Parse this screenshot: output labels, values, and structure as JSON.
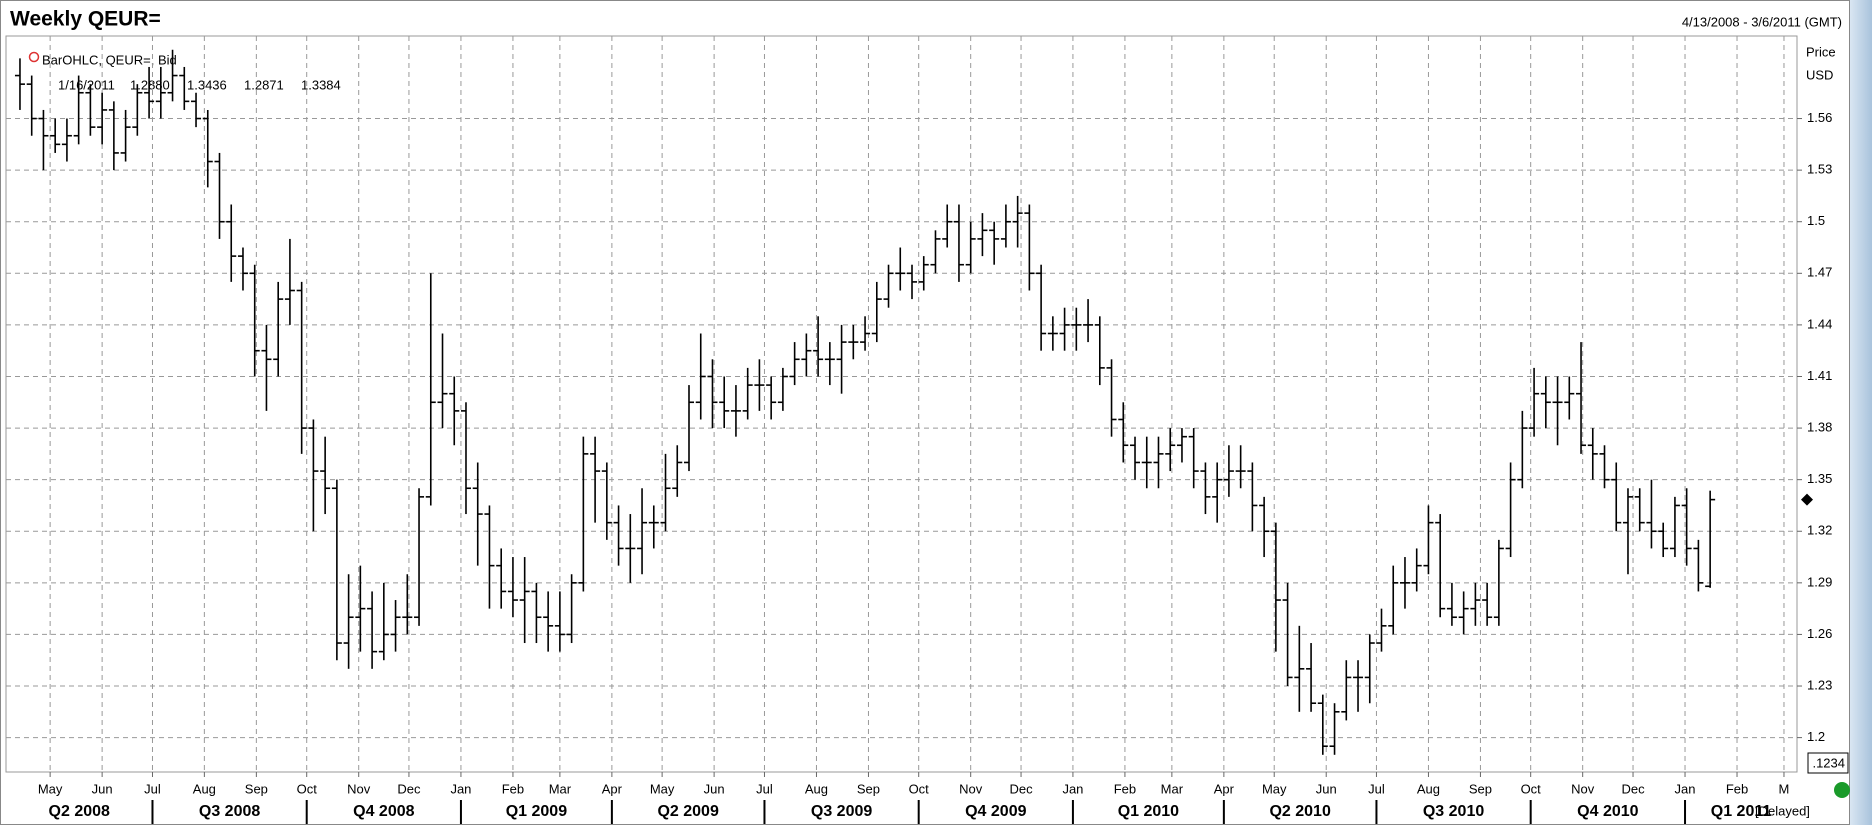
{
  "chart_data": {
    "type": "ohlc",
    "title": "Weekly QEUR=",
    "subtitle": "4/13/2008 - 3/6/2011 (GMT)",
    "y_axis_label": "Price",
    "y_axis_unit": "USD",
    "legend_name": "BarOHLC, QEUR=, Bid",
    "legend_date": "1/16/2011",
    "last_value_labels": [
      "1.2880",
      "1.3436",
      "1.2871",
      "1.3384"
    ],
    "cursor_label": ".1234",
    "status": "[Delayed]",
    "color": "#000000",
    "grid": true,
    "open": [
      1.585,
      1.58,
      1.56,
      1.55,
      1.545,
      1.55,
      1.575,
      1.555,
      1.565,
      1.54,
      1.555,
      1.575,
      1.57,
      1.575,
      1.585,
      1.57,
      1.56,
      1.535,
      1.5,
      1.48,
      1.47,
      1.425,
      1.42,
      1.455,
      1.46,
      1.38,
      1.355,
      1.345,
      1.255,
      1.27,
      1.275,
      1.25,
      1.26,
      1.27,
      1.27,
      1.34,
      1.395,
      1.4,
      1.39,
      1.345,
      1.33,
      1.3,
      1.285,
      1.28,
      1.285,
      1.27,
      1.265,
      1.26,
      1.29,
      1.365,
      1.355,
      1.325,
      1.31,
      1.31,
      1.325,
      1.325,
      1.345,
      1.36,
      1.395,
      1.41,
      1.395,
      1.39,
      1.39,
      1.405,
      1.405,
      1.395,
      1.41,
      1.42,
      1.425,
      1.42,
      1.42,
      1.43,
      1.43,
      1.435,
      1.455,
      1.47,
      1.47,
      1.465,
      1.475,
      1.49,
      1.5,
      1.475,
      1.49,
      1.495,
      1.49,
      1.5,
      1.505,
      1.47,
      1.435,
      1.435,
      1.44,
      1.44,
      1.44,
      1.415,
      1.385,
      1.37,
      1.36,
      1.36,
      1.365,
      1.37,
      1.375,
      1.355,
      1.34,
      1.35,
      1.355,
      1.355,
      1.335,
      1.32,
      1.28,
      1.235,
      1.24,
      1.22,
      1.195,
      1.215,
      1.235,
      1.235,
      1.255,
      1.265,
      1.29,
      1.29,
      1.3,
      1.325,
      1.275,
      1.27,
      1.275,
      1.28,
      1.27,
      1.31,
      1.35,
      1.38,
      1.4,
      1.395,
      1.395,
      1.4,
      1.37,
      1.365,
      1.35,
      1.325,
      1.34,
      1.325,
      1.32,
      1.31,
      1.335,
      1.31,
      1.288
    ],
    "high": [
      1.595,
      1.585,
      1.565,
      1.56,
      1.56,
      1.585,
      1.58,
      1.575,
      1.57,
      1.565,
      1.58,
      1.59,
      1.59,
      1.6,
      1.59,
      1.575,
      1.565,
      1.54,
      1.51,
      1.485,
      1.475,
      1.44,
      1.465,
      1.49,
      1.465,
      1.385,
      1.375,
      1.35,
      1.295,
      1.3,
      1.285,
      1.29,
      1.28,
      1.295,
      1.345,
      1.47,
      1.435,
      1.41,
      1.395,
      1.36,
      1.335,
      1.31,
      1.305,
      1.305,
      1.29,
      1.285,
      1.285,
      1.295,
      1.375,
      1.375,
      1.36,
      1.335,
      1.33,
      1.345,
      1.335,
      1.365,
      1.37,
      1.405,
      1.435,
      1.42,
      1.41,
      1.405,
      1.415,
      1.42,
      1.41,
      1.415,
      1.43,
      1.435,
      1.445,
      1.43,
      1.44,
      1.44,
      1.445,
      1.465,
      1.475,
      1.485,
      1.475,
      1.48,
      1.495,
      1.51,
      1.51,
      1.5,
      1.505,
      1.5,
      1.51,
      1.515,
      1.51,
      1.475,
      1.445,
      1.45,
      1.45,
      1.455,
      1.445,
      1.42,
      1.395,
      1.375,
      1.375,
      1.375,
      1.38,
      1.38,
      1.38,
      1.36,
      1.36,
      1.37,
      1.37,
      1.36,
      1.34,
      1.325,
      1.29,
      1.265,
      1.255,
      1.225,
      1.22,
      1.245,
      1.245,
      1.26,
      1.275,
      1.3,
      1.305,
      1.31,
      1.335,
      1.33,
      1.29,
      1.285,
      1.29,
      1.29,
      1.315,
      1.36,
      1.39,
      1.415,
      1.41,
      1.41,
      1.41,
      1.43,
      1.38,
      1.37,
      1.36,
      1.345,
      1.345,
      1.35,
      1.325,
      1.34,
      1.345,
      1.315,
      1.3436
    ],
    "low": [
      1.565,
      1.55,
      1.53,
      1.54,
      1.535,
      1.545,
      1.55,
      1.545,
      1.53,
      1.535,
      1.55,
      1.56,
      1.56,
      1.57,
      1.565,
      1.555,
      1.52,
      1.49,
      1.465,
      1.46,
      1.41,
      1.39,
      1.41,
      1.44,
      1.365,
      1.32,
      1.33,
      1.245,
      1.24,
      1.25,
      1.24,
      1.245,
      1.25,
      1.26,
      1.265,
      1.335,
      1.38,
      1.37,
      1.33,
      1.3,
      1.275,
      1.275,
      1.27,
      1.255,
      1.255,
      1.25,
      1.25,
      1.255,
      1.285,
      1.325,
      1.315,
      1.3,
      1.29,
      1.295,
      1.31,
      1.32,
      1.34,
      1.355,
      1.385,
      1.38,
      1.38,
      1.375,
      1.385,
      1.39,
      1.385,
      1.39,
      1.405,
      1.41,
      1.41,
      1.405,
      1.4,
      1.42,
      1.425,
      1.43,
      1.45,
      1.46,
      1.455,
      1.46,
      1.47,
      1.485,
      1.465,
      1.47,
      1.48,
      1.475,
      1.485,
      1.485,
      1.46,
      1.425,
      1.425,
      1.425,
      1.425,
      1.43,
      1.405,
      1.375,
      1.36,
      1.35,
      1.345,
      1.345,
      1.355,
      1.36,
      1.345,
      1.33,
      1.325,
      1.34,
      1.345,
      1.32,
      1.305,
      1.25,
      1.23,
      1.215,
      1.215,
      1.19,
      1.19,
      1.21,
      1.215,
      1.22,
      1.25,
      1.26,
      1.275,
      1.285,
      1.295,
      1.27,
      1.265,
      1.26,
      1.265,
      1.265,
      1.265,
      1.305,
      1.345,
      1.375,
      1.38,
      1.37,
      1.385,
      1.365,
      1.35,
      1.345,
      1.32,
      1.295,
      1.32,
      1.31,
      1.305,
      1.305,
      1.3,
      1.285,
      1.2871
    ],
    "close": [
      1.58,
      1.56,
      1.55,
      1.545,
      1.55,
      1.575,
      1.555,
      1.565,
      1.54,
      1.555,
      1.575,
      1.57,
      1.575,
      1.585,
      1.57,
      1.56,
      1.535,
      1.5,
      1.48,
      1.47,
      1.425,
      1.42,
      1.455,
      1.46,
      1.38,
      1.355,
      1.345,
      1.255,
      1.27,
      1.275,
      1.25,
      1.26,
      1.27,
      1.27,
      1.34,
      1.395,
      1.4,
      1.39,
      1.345,
      1.33,
      1.3,
      1.285,
      1.28,
      1.285,
      1.27,
      1.265,
      1.26,
      1.29,
      1.365,
      1.355,
      1.325,
      1.31,
      1.31,
      1.325,
      1.325,
      1.345,
      1.36,
      1.395,
      1.41,
      1.395,
      1.39,
      1.39,
      1.405,
      1.405,
      1.395,
      1.41,
      1.42,
      1.425,
      1.42,
      1.42,
      1.43,
      1.43,
      1.435,
      1.455,
      1.47,
      1.47,
      1.465,
      1.475,
      1.49,
      1.5,
      1.475,
      1.49,
      1.495,
      1.49,
      1.5,
      1.505,
      1.47,
      1.435,
      1.435,
      1.44,
      1.44,
      1.44,
      1.415,
      1.385,
      1.37,
      1.36,
      1.36,
      1.365,
      1.37,
      1.375,
      1.355,
      1.34,
      1.35,
      1.355,
      1.355,
      1.335,
      1.32,
      1.28,
      1.235,
      1.24,
      1.22,
      1.195,
      1.215,
      1.235,
      1.235,
      1.255,
      1.265,
      1.29,
      1.29,
      1.3,
      1.325,
      1.275,
      1.27,
      1.275,
      1.28,
      1.27,
      1.31,
      1.35,
      1.38,
      1.4,
      1.395,
      1.395,
      1.4,
      1.37,
      1.365,
      1.35,
      1.325,
      1.34,
      1.325,
      1.32,
      1.31,
      1.335,
      1.31,
      1.29,
      1.3384
    ],
    "xlim": [
      -1.19,
      151.4
    ],
    "ylim": [
      1.18,
      1.608
    ],
    "yticks": [
      1.2,
      1.23,
      1.26,
      1.29,
      1.32,
      1.35,
      1.38,
      1.41,
      1.44,
      1.47,
      1.5,
      1.53,
      1.56
    ],
    "xticks": [
      {
        "value": 2.57,
        "label": "May"
      },
      {
        "value": 7.0,
        "label": "Jun"
      },
      {
        "value": 11.29,
        "label": "Jul"
      },
      {
        "value": 15.71,
        "label": "Aug"
      },
      {
        "value": 20.14,
        "label": "Sep"
      },
      {
        "value": 24.43,
        "label": "Oct"
      },
      {
        "value": 28.86,
        "label": "Nov"
      },
      {
        "value": 33.14,
        "label": "Dec"
      },
      {
        "value": 37.57,
        "label": "Jan"
      },
      {
        "value": 42.0,
        "label": "Feb"
      },
      {
        "value": 46.0,
        "label": "Mar"
      },
      {
        "value": 50.43,
        "label": "Apr"
      },
      {
        "value": 54.71,
        "label": "May"
      },
      {
        "value": 59.14,
        "label": "Jun"
      },
      {
        "value": 63.43,
        "label": "Jul"
      },
      {
        "value": 67.86,
        "label": "Aug"
      },
      {
        "value": 72.29,
        "label": "Sep"
      },
      {
        "value": 76.57,
        "label": "Oct"
      },
      {
        "value": 81.0,
        "label": "Nov"
      },
      {
        "value": 85.29,
        "label": "Dec"
      },
      {
        "value": 89.71,
        "label": "Jan"
      },
      {
        "value": 94.14,
        "label": "Feb"
      },
      {
        "value": 98.14,
        "label": "Mar"
      },
      {
        "value": 102.57,
        "label": "Apr"
      },
      {
        "value": 106.86,
        "label": "May"
      },
      {
        "value": 111.29,
        "label": "Jun"
      },
      {
        "value": 115.57,
        "label": "Jul"
      },
      {
        "value": 120.0,
        "label": "Aug"
      },
      {
        "value": 124.43,
        "label": "Sep"
      },
      {
        "value": 128.71,
        "label": "Oct"
      },
      {
        "value": 133.14,
        "label": "Nov"
      },
      {
        "value": 137.43,
        "label": "Dec"
      },
      {
        "value": 141.86,
        "label": "Jan"
      },
      {
        "value": 146.29,
        "label": "Feb"
      },
      {
        "value": 150.29,
        "label": "M"
      }
    ],
    "quarters": [
      {
        "value": -1.71,
        "label": "Q2 2008"
      },
      {
        "value": 11.29,
        "label": "Q3 2008"
      },
      {
        "value": 24.43,
        "label": "Q4 2008"
      },
      {
        "value": 37.57,
        "label": "Q1 2009"
      },
      {
        "value": 50.43,
        "label": "Q2 2009"
      },
      {
        "value": 63.43,
        "label": "Q3 2009"
      },
      {
        "value": 76.57,
        "label": "Q4 2009"
      },
      {
        "value": 89.71,
        "label": "Q1 2010"
      },
      {
        "value": 102.57,
        "label": "Q2 2010"
      },
      {
        "value": 115.57,
        "label": "Q3 2010"
      },
      {
        "value": 128.71,
        "label": "Q4 2010"
      },
      {
        "value": 141.86,
        "label": "Q1 2011"
      }
    ]
  }
}
